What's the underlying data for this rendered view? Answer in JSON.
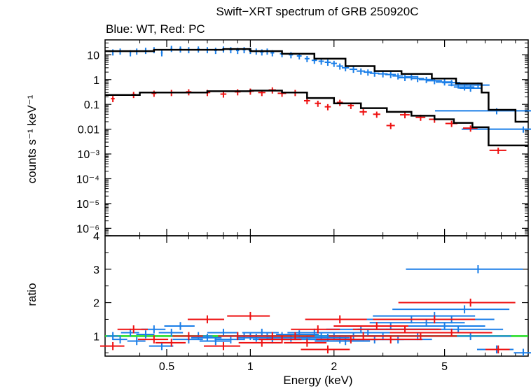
{
  "chart_data": {
    "type": "scatter",
    "title": "Swift−XRT spectrum of GRB 250920C",
    "subtitle": "Blue: WT, Red: PC",
    "xlabel": "Energy (keV)",
    "x_scale": "log",
    "xlim": [
      0.3,
      10
    ],
    "x_ticks": [
      {
        "v": 0.5,
        "label": "0.5"
      },
      {
        "v": 1,
        "label": "1"
      },
      {
        "v": 2,
        "label": "2"
      },
      {
        "v": 5,
        "label": "5"
      }
    ],
    "colors": {
      "WT": "#1a7ee8",
      "PC": "#ee1111",
      "model": "#000000",
      "unity": "#22dd22"
    },
    "panels": [
      {
        "name": "spectrum",
        "ylabel": "counts s⁻¹ keV⁻¹",
        "y_scale": "log",
        "ylim": [
          5e-07,
          40
        ],
        "y_ticks": [
          {
            "v": 10,
            "label": "10"
          },
          {
            "v": 1,
            "label": "1"
          },
          {
            "v": 0.1,
            "label": "0.1"
          },
          {
            "v": 0.01,
            "label": "0.01"
          },
          {
            "v": 0.001,
            "label": "10⁻³"
          },
          {
            "v": 0.0001,
            "label": "10⁻⁴"
          },
          {
            "v": 1e-05,
            "label": "10⁻⁵"
          },
          {
            "v": 1e-06,
            "label": "10⁻⁶"
          }
        ],
        "series": [
          {
            "key": "WT",
            "points": [
              [
                0.32,
                13,
                0.01
              ],
              [
                0.34,
                14,
                0.01
              ],
              [
                0.37,
                12,
                0.012
              ],
              [
                0.39,
                14,
                0.01
              ],
              [
                0.42,
                15,
                0.012
              ],
              [
                0.45,
                16,
                0.012
              ],
              [
                0.48,
                12,
                0.015
              ],
              [
                0.52,
                18,
                0.015
              ],
              [
                0.56,
                17,
                0.018
              ],
              [
                0.6,
                16,
                0.02
              ],
              [
                0.65,
                17,
                0.02
              ],
              [
                0.7,
                16,
                0.02
              ],
              [
                0.75,
                15,
                0.02
              ],
              [
                0.8,
                17,
                0.02
              ],
              [
                0.85,
                16,
                0.025
              ],
              [
                0.9,
                15,
                0.025
              ],
              [
                0.95,
                16,
                0.025
              ],
              [
                1.0,
                15,
                0.03
              ],
              [
                1.05,
                14,
                0.03
              ],
              [
                1.1,
                13,
                0.03
              ],
              [
                1.15,
                14,
                0.03
              ],
              [
                1.2,
                12,
                0.03
              ],
              [
                1.3,
                11,
                0.035
              ],
              [
                1.4,
                10,
                0.035
              ],
              [
                1.5,
                9,
                0.04
              ],
              [
                1.6,
                7,
                0.04
              ],
              [
                1.7,
                6,
                0.045
              ],
              [
                1.8,
                5.5,
                0.045
              ],
              [
                1.9,
                5,
                0.05
              ],
              [
                2.0,
                4.5,
                0.05
              ],
              [
                2.1,
                3.5,
                0.055
              ],
              [
                2.2,
                3,
                0.06
              ],
              [
                2.35,
                2.6,
                0.065
              ],
              [
                2.5,
                2.2,
                0.07
              ],
              [
                2.65,
                2.0,
                0.07
              ],
              [
                2.8,
                1.8,
                0.08
              ],
              [
                3.0,
                1.7,
                0.08
              ],
              [
                3.2,
                1.6,
                0.09
              ],
              [
                3.4,
                1.4,
                0.09
              ],
              [
                3.6,
                1.2,
                0.1
              ],
              [
                3.8,
                1.3,
                0.1
              ],
              [
                4.0,
                1.1,
                0.11
              ],
              [
                4.3,
                1.0,
                0.12
              ],
              [
                4.6,
                0.9,
                0.13
              ],
              [
                5.0,
                0.8,
                0.14
              ],
              [
                5.3,
                0.75,
                0.15
              ],
              [
                5.6,
                0.6,
                0.16
              ],
              [
                5.9,
                0.5,
                0.17
              ],
              [
                6.2,
                0.45,
                0.18
              ],
              [
                6.6,
                0.6,
                0.2
              ],
              [
                7.7,
                0.055,
                0.8
              ],
              [
                9.6,
                0.01,
                0.8
              ]
            ]
          },
          {
            "key": "PC",
            "points": [
              [
                0.32,
                0.17,
                0.03
              ],
              [
                0.38,
                0.25,
                0.035
              ],
              [
                0.45,
                0.28,
                0.04
              ],
              [
                0.52,
                0.3,
                0.04
              ],
              [
                0.6,
                0.32,
                0.045
              ],
              [
                0.7,
                0.3,
                0.05
              ],
              [
                0.8,
                0.26,
                0.05
              ],
              [
                0.9,
                0.32,
                0.05
              ],
              [
                1.0,
                0.34,
                0.06
              ],
              [
                1.1,
                0.3,
                0.06
              ],
              [
                1.2,
                0.38,
                0.06
              ],
              [
                1.3,
                0.28,
                0.07
              ],
              [
                1.45,
                0.3,
                0.07
              ],
              [
                1.6,
                0.14,
                0.05
              ],
              [
                1.75,
                0.11,
                0.05
              ],
              [
                1.9,
                0.08,
                0.05
              ],
              [
                2.1,
                0.12,
                0.05
              ],
              [
                2.3,
                0.09,
                0.05
              ],
              [
                2.55,
                0.05,
                0.06
              ],
              [
                2.85,
                0.04,
                0.06
              ],
              [
                3.2,
                0.014,
                0.07
              ],
              [
                3.6,
                0.038,
                0.08
              ],
              [
                4.1,
                0.03,
                0.08
              ],
              [
                4.6,
                0.025,
                0.09
              ],
              [
                5.3,
                0.017,
                0.1
              ],
              [
                6.2,
                0.011,
                0.12
              ],
              [
                7.8,
                0.0014,
                0.14
              ]
            ]
          }
        ],
        "models": [
          {
            "key": "WT",
            "steps": [
              [
                0.3,
                14
              ],
              [
                0.45,
                16
              ],
              [
                0.8,
                17
              ],
              [
                1.0,
                14
              ],
              [
                1.3,
                11
              ],
              [
                1.7,
                7
              ],
              [
                2.2,
                3.5
              ],
              [
                2.8,
                2.2
              ],
              [
                3.5,
                1.7
              ],
              [
                4.5,
                1.1
              ],
              [
                5.5,
                0.7
              ],
              [
                6.8,
                0.3
              ],
              [
                7.2,
                0.06
              ],
              [
                9.0,
                0.02
              ],
              [
                10,
                0.02
              ]
            ]
          },
          {
            "key": "PC",
            "steps": [
              [
                0.3,
                0.24
              ],
              [
                0.4,
                0.3
              ],
              [
                0.7,
                0.34
              ],
              [
                1.0,
                0.36
              ],
              [
                1.3,
                0.3
              ],
              [
                1.6,
                0.18
              ],
              [
                2.0,
                0.11
              ],
              [
                2.5,
                0.07
              ],
              [
                3.1,
                0.05
              ],
              [
                3.8,
                0.035
              ],
              [
                4.6,
                0.025
              ],
              [
                5.4,
                0.018
              ],
              [
                6.3,
                0.012
              ],
              [
                7.2,
                0.0022
              ],
              [
                10,
                0.0022
              ]
            ]
          }
        ]
      },
      {
        "name": "ratio",
        "ylabel": "ratio",
        "y_scale": "linear",
        "ylim": [
          0.4,
          4
        ],
        "y_ticks": [
          {
            "v": 1,
            "label": "1"
          },
          {
            "v": 2,
            "label": "2"
          },
          {
            "v": 3,
            "label": "3"
          },
          {
            "v": 4,
            "label": "4"
          }
        ],
        "unity": 1,
        "series": [
          {
            "key": "WT",
            "points": [
              [
                0.32,
                1.0,
                0.1
              ],
              [
                0.34,
                0.9,
                0.12
              ],
              [
                0.37,
                1.1,
                0.15
              ],
              [
                0.39,
                0.85,
                0.15
              ],
              [
                0.42,
                1.05,
                0.15
              ],
              [
                0.45,
                1.2,
                0.2
              ],
              [
                0.48,
                0.7,
                0.2
              ],
              [
                0.52,
                1.1,
                0.2
              ],
              [
                0.56,
                1.3,
                0.25
              ],
              [
                0.6,
                0.9,
                0.25
              ],
              [
                0.65,
                1.0,
                0.25
              ],
              [
                0.7,
                0.95,
                0.25
              ],
              [
                0.75,
                0.85,
                0.25
              ],
              [
                0.8,
                1.1,
                0.25
              ],
              [
                0.85,
                0.9,
                0.25
              ],
              [
                0.9,
                1.0,
                0.25
              ],
              [
                0.95,
                1.0,
                0.3
              ],
              [
                1.0,
                1.0,
                0.3
              ],
              [
                1.05,
                0.95,
                0.3
              ],
              [
                1.1,
                1.1,
                0.3
              ],
              [
                1.15,
                1.0,
                0.3
              ],
              [
                1.2,
                0.9,
                0.3
              ],
              [
                1.3,
                1.0,
                0.3
              ],
              [
                1.4,
                0.95,
                0.35
              ],
              [
                1.5,
                1.05,
                0.35
              ],
              [
                1.6,
                0.9,
                0.35
              ],
              [
                1.7,
                1.1,
                0.4
              ],
              [
                1.8,
                1.0,
                0.4
              ],
              [
                1.9,
                0.95,
                0.4
              ],
              [
                2.0,
                1.0,
                0.4
              ],
              [
                2.1,
                0.9,
                0.45
              ],
              [
                2.2,
                0.85,
                0.45
              ],
              [
                2.35,
                1.0,
                0.5
              ],
              [
                2.5,
                1.2,
                0.5
              ],
              [
                2.65,
                1.1,
                0.55
              ],
              [
                2.8,
                0.9,
                0.55
              ],
              [
                3.0,
                1.0,
                0.6
              ],
              [
                3.2,
                1.3,
                0.6
              ],
              [
                3.4,
                0.9,
                0.65
              ],
              [
                3.6,
                1.2,
                0.65
              ],
              [
                3.8,
                1.5,
                0.7
              ],
              [
                4.0,
                1.0,
                0.7
              ],
              [
                4.3,
                1.4,
                0.75
              ],
              [
                4.6,
                1.6,
                0.8
              ],
              [
                5.0,
                1.3,
                0.8
              ],
              [
                5.3,
                1.5,
                0.85
              ],
              [
                5.6,
                1.2,
                0.9
              ],
              [
                5.9,
                1.8,
                0.9
              ],
              [
                6.2,
                1.0,
                0.8
              ],
              [
                6.6,
                3.0,
                0.9
              ],
              [
                7.7,
                0.6,
                0.3
              ],
              [
                9.6,
                0.5,
                0.15
              ]
            ]
          },
          {
            "key": "PC",
            "points": [
              [
                0.32,
                0.7,
                0.2
              ],
              [
                0.38,
                1.2,
                0.25
              ],
              [
                0.45,
                0.9,
                0.25
              ],
              [
                0.52,
                0.8,
                0.25
              ],
              [
                0.6,
                1.0,
                0.25
              ],
              [
                0.7,
                1.5,
                0.3
              ],
              [
                0.8,
                0.7,
                0.3
              ],
              [
                0.9,
                1.0,
                0.3
              ],
              [
                1.0,
                1.6,
                0.35
              ],
              [
                1.1,
                0.8,
                0.35
              ],
              [
                1.2,
                1.0,
                0.35
              ],
              [
                1.3,
                0.9,
                0.35
              ],
              [
                1.45,
                1.0,
                0.35
              ],
              [
                1.6,
                0.8,
                0.35
              ],
              [
                1.75,
                1.2,
                0.4
              ],
              [
                1.9,
                0.6,
                0.4
              ],
              [
                2.1,
                1.5,
                0.5
              ],
              [
                2.3,
                0.9,
                0.5
              ],
              [
                2.55,
                1.0,
                0.5
              ],
              [
                2.85,
                1.3,
                0.6
              ],
              [
                3.2,
                0.9,
                0.6
              ],
              [
                3.6,
                1.2,
                0.7
              ],
              [
                4.1,
                1.0,
                0.7
              ],
              [
                4.6,
                1.5,
                0.8
              ],
              [
                5.3,
                1.1,
                0.8
              ],
              [
                6.2,
                2.0,
                0.9
              ],
              [
                7.8,
                0.6,
                0.2
              ]
            ]
          }
        ]
      }
    ]
  }
}
